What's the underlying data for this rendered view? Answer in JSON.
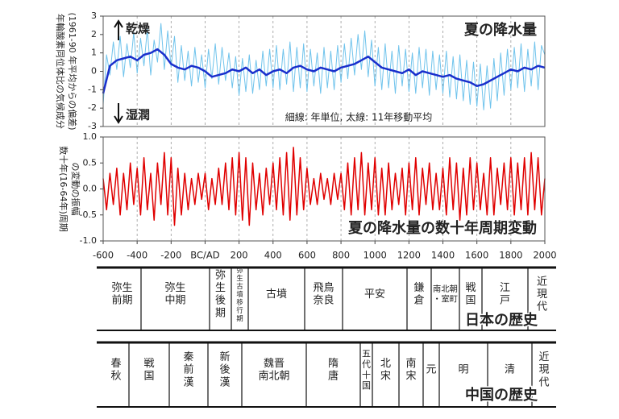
{
  "chart_data": [
    {
      "type": "line",
      "title": "夏の降水量",
      "ylabel": [
        "年輪酸素同位体比の気候成分",
        "(1961-90 年平均からの偏差)"
      ],
      "annotations": {
        "up": "乾燥",
        "down": "湿潤",
        "note": "細線: 年単位, 太線: 11年移動平均"
      },
      "xlim": [
        -600,
        2000
      ],
      "ylim": [
        -3,
        3
      ],
      "yticks": [
        -3,
        -2,
        -1,
        0,
        1,
        2,
        3
      ],
      "grid": true,
      "series": [
        {
          "color": "#6fc3ec",
          "width": 1,
          "x": [
            -600,
            -580,
            -560,
            -540,
            -520,
            -500,
            -480,
            -460,
            -440,
            -420,
            -400,
            -380,
            -360,
            -340,
            -320,
            -300,
            -280,
            -260,
            -240,
            -220,
            -200,
            -180,
            -160,
            -140,
            -120,
            -100,
            -80,
            -60,
            -40,
            -20,
            0,
            20,
            40,
            60,
            80,
            100,
            120,
            140,
            160,
            180,
            200,
            220,
            240,
            260,
            280,
            300,
            320,
            340,
            360,
            380,
            400,
            420,
            440,
            460,
            480,
            500,
            520,
            540,
            560,
            580,
            600,
            620,
            640,
            660,
            680,
            700,
            720,
            740,
            760,
            780,
            800,
            820,
            840,
            860,
            880,
            900,
            920,
            940,
            960,
            980,
            1000,
            1020,
            1040,
            1060,
            1080,
            1100,
            1120,
            1140,
            1160,
            1180,
            1200,
            1220,
            1240,
            1260,
            1280,
            1300,
            1320,
            1340,
            1360,
            1380,
            1400,
            1420,
            1440,
            1460,
            1480,
            1500,
            1520,
            1540,
            1560,
            1580,
            1600,
            1620,
            1640,
            1660,
            1680,
            1700,
            1720,
            1740,
            1760,
            1780,
            1800,
            1820,
            1840,
            1860,
            1880,
            1900,
            1920,
            1940,
            1960,
            1980,
            2000
          ],
          "values": [
            -1.8,
            0.9,
            -0.2,
            1.6,
            0.1,
            1.9,
            -0.3,
            1.5,
            0.2,
            2.1,
            -0.1,
            1.8,
            0.3,
            2.3,
            -0.2,
            1.7,
            0.5,
            2.6,
            0.1,
            2.2,
            0.2,
            1.9,
            -0.6,
            1.4,
            -0.5,
            1.1,
            -0.8,
            1.3,
            -0.6,
            0.9,
            -0.9,
            1.2,
            -0.4,
            1.5,
            -0.7,
            1.3,
            -0.5,
            1.0,
            -0.9,
            0.8,
            -1.3,
            0.7,
            -1.1,
            0.9,
            -1.2,
            0.6,
            -1.0,
            1.1,
            -0.8,
            1.2,
            -0.9,
            1.4,
            -1.0,
            1.2,
            -0.7,
            1.6,
            -1.1,
            1.3,
            -0.9,
            1.5,
            -1.1,
            1.2,
            -0.8,
            1.0,
            -1.2,
            1.3,
            -0.9,
            1.1,
            -1.0,
            1.4,
            -0.6,
            1.5,
            -0.4,
            1.8,
            -0.2,
            2.0,
            0.1,
            2.2,
            -0.3,
            1.7,
            -0.8,
            1.3,
            -1.0,
            1.5,
            -0.9,
            1.1,
            -1.2,
            1.4,
            -0.8,
            1.2,
            -1.1,
            1.0,
            -1.2,
            1.3,
            -0.9,
            1.2,
            -1.3,
            1.1,
            -1.0,
            0.9,
            -1.2,
            1.1,
            -1.4,
            0.8,
            -1.5,
            0.9,
            -1.6,
            0.6,
            -1.8,
            0.5,
            -1.9,
            0.4,
            -2.1,
            0.3,
            -2.0,
            0.7,
            -1.6,
            1.0,
            -1.3,
            1.2,
            -1.0,
            1.3,
            -0.9,
            1.5,
            -1.1,
            1.2,
            -0.8,
            1.6,
            -1.0,
            1.4,
            0.9
          ]
        },
        {
          "color": "#1a2fcc",
          "width": 2.5,
          "x": [
            -600,
            -560,
            -520,
            -480,
            -440,
            -400,
            -360,
            -320,
            -280,
            -240,
            -200,
            -160,
            -120,
            -80,
            -40,
            0,
            40,
            80,
            120,
            160,
            200,
            240,
            280,
            320,
            360,
            400,
            440,
            480,
            520,
            560,
            600,
            640,
            680,
            720,
            760,
            800,
            840,
            880,
            920,
            960,
            1000,
            1040,
            1080,
            1120,
            1160,
            1200,
            1240,
            1280,
            1320,
            1360,
            1400,
            1440,
            1480,
            1520,
            1560,
            1600,
            1640,
            1680,
            1720,
            1760,
            1800,
            1840,
            1880,
            1920,
            1960,
            2000
          ],
          "values": [
            -1.2,
            0.3,
            0.6,
            0.7,
            0.8,
            0.6,
            0.9,
            1.0,
            1.2,
            0.9,
            0.4,
            0.2,
            0.1,
            0.3,
            0.2,
            0.0,
            -0.3,
            -0.2,
            -0.1,
            0.1,
            0.0,
            0.2,
            -0.1,
            0.1,
            -0.2,
            0.0,
            0.1,
            -0.1,
            0.2,
            0.3,
            0.1,
            0.0,
            0.2,
            0.1,
            0.0,
            0.2,
            0.3,
            0.4,
            0.6,
            0.8,
            0.5,
            0.2,
            0.1,
            0.0,
            -0.1,
            0.1,
            -0.2,
            0.0,
            -0.1,
            -0.2,
            -0.3,
            -0.2,
            -0.4,
            -0.5,
            -0.6,
            -0.8,
            -0.7,
            -0.5,
            -0.3,
            -0.1,
            0.1,
            0.0,
            0.2,
            0.1,
            0.3,
            0.2
          ]
        }
      ]
    },
    {
      "type": "line",
      "title": "夏の降水量の数十年周期変動",
      "ylabel": [
        "数十年(16-64年)周期",
        "の変動の振幅"
      ],
      "xlim": [
        -600,
        2000
      ],
      "xticks": [
        -600,
        -400,
        -200,
        {
          "value": 0,
          "label": "BC/AD"
        },
        200,
        400,
        600,
        800,
        1000,
        1200,
        1400,
        1600,
        1800,
        2000
      ],
      "ylim": [
        -1,
        1
      ],
      "yticks": [
        {
          "value": -1,
          "label": "-1.0"
        },
        -0.5,
        {
          "value": 0,
          "label": "0.0"
        },
        0.5,
        {
          "value": 1,
          "label": "1.0"
        }
      ],
      "grid": true,
      "series": [
        {
          "color": "#e00000",
          "width": 1.5,
          "x": [
            -600,
            -580,
            -560,
            -540,
            -520,
            -500,
            -480,
            -460,
            -440,
            -420,
            -400,
            -380,
            -360,
            -340,
            -320,
            -300,
            -280,
            -260,
            -240,
            -220,
            -200,
            -180,
            -160,
            -140,
            -120,
            -100,
            -80,
            -60,
            -40,
            -20,
            0,
            20,
            40,
            60,
            80,
            100,
            120,
            140,
            160,
            180,
            200,
            220,
            240,
            260,
            280,
            300,
            320,
            340,
            360,
            380,
            400,
            420,
            440,
            460,
            480,
            500,
            520,
            540,
            560,
            580,
            600,
            620,
            640,
            660,
            680,
            700,
            720,
            740,
            760,
            780,
            800,
            820,
            840,
            860,
            880,
            900,
            920,
            940,
            960,
            980,
            1000,
            1020,
            1040,
            1060,
            1080,
            1100,
            1120,
            1140,
            1160,
            1180,
            1200,
            1220,
            1240,
            1260,
            1280,
            1300,
            1320,
            1340,
            1360,
            1380,
            1400,
            1420,
            1440,
            1460,
            1480,
            1500,
            1520,
            1540,
            1560,
            1580,
            1600,
            1620,
            1640,
            1660,
            1680,
            1700,
            1720,
            1740,
            1760,
            1780,
            1800,
            1820,
            1840,
            1860,
            1880,
            1900,
            1920,
            1940,
            1960,
            1980,
            2000
          ],
          "values": [
            0.2,
            -0.4,
            0.3,
            -0.3,
            0.4,
            -0.5,
            0.3,
            -0.4,
            0.5,
            -0.3,
            0.4,
            -0.5,
            0.6,
            -0.4,
            0.3,
            -0.6,
            0.5,
            -0.3,
            0.7,
            -0.5,
            0.6,
            -0.7,
            0.4,
            -0.5,
            0.3,
            -0.4,
            0.2,
            -0.3,
            0.3,
            -0.2,
            0.3,
            -0.4,
            0.2,
            -0.3,
            0.4,
            -0.3,
            0.5,
            -0.4,
            0.6,
            -0.5,
            0.7,
            -0.6,
            0.6,
            -0.7,
            0.5,
            -0.4,
            0.3,
            -0.5,
            0.4,
            -0.3,
            0.5,
            -0.4,
            0.6,
            -0.5,
            0.7,
            -0.6,
            0.8,
            -0.5,
            0.6,
            -0.4,
            0.4,
            -0.3,
            0.2,
            -0.3,
            0.3,
            -0.2,
            0.2,
            -0.3,
            0.3,
            -0.2,
            0.3,
            -0.4,
            0.5,
            -0.5,
            0.6,
            -0.4,
            0.7,
            -0.5,
            0.5,
            -0.4,
            0.6,
            -0.5,
            0.4,
            -0.5,
            0.5,
            -0.4,
            0.3,
            -0.3,
            0.4,
            -0.5,
            0.5,
            -0.4,
            0.6,
            -0.5,
            0.4,
            -0.3,
            0.5,
            -0.4,
            0.3,
            -0.4,
            0.4,
            -0.5,
            0.6,
            -0.4,
            0.5,
            -0.6,
            0.4,
            -0.5,
            0.6,
            -0.4,
            0.5,
            -0.4,
            0.3,
            -0.5,
            0.6,
            -0.5,
            0.4,
            -0.3,
            0.5,
            -0.4,
            0.6,
            -0.5,
            0.5,
            -0.4,
            0.6,
            -0.5,
            0.7,
            -0.4,
            0.6,
            -0.5,
            0.2
          ]
        }
      ]
    }
  ],
  "japan_history": {
    "title": "日本の歴史",
    "periods": [
      {
        "lines": [
          "弥生",
          "前期"
        ]
      },
      {
        "lines": [
          "弥生",
          "中期"
        ]
      },
      {
        "lines": [
          "弥",
          "生",
          "後",
          "期"
        ]
      },
      {
        "lines": [
          "弥",
          "生",
          "古",
          "墳",
          "移",
          "行",
          "期"
        ]
      },
      {
        "lines": [
          "古墳"
        ]
      },
      {
        "lines": [
          "飛鳥",
          "奈良"
        ]
      },
      {
        "lines": [
          "平安"
        ]
      },
      {
        "lines": [
          "鎌",
          "倉"
        ]
      },
      {
        "lines": [
          "南北朝",
          "・室町"
        ]
      },
      {
        "lines": [
          "戦",
          "国"
        ]
      },
      {
        "lines": [
          "江",
          "戸"
        ]
      },
      {
        "lines": [
          "近",
          "現",
          "代"
        ]
      }
    ]
  },
  "china_history": {
    "title": "中国の歴史",
    "periods": [
      {
        "lines": [
          "春",
          "秋"
        ]
      },
      {
        "lines": [
          "戦",
          "国"
        ]
      },
      {
        "lines": [
          "秦",
          "前",
          "漢"
        ]
      },
      {
        "lines": [
          "新",
          "後",
          "漢"
        ]
      },
      {
        "lines": [
          "魏晋",
          "南北朝"
        ]
      },
      {
        "lines": [
          "隋",
          "唐"
        ]
      },
      {
        "lines": [
          "五",
          "代",
          "十",
          "国"
        ]
      },
      {
        "lines": [
          "北",
          "宋"
        ]
      },
      {
        "lines": [
          "南",
          "宋"
        ]
      },
      {
        "lines": [
          "元"
        ]
      },
      {
        "lines": [
          "明"
        ]
      },
      {
        "lines": [
          "清"
        ]
      },
      {
        "lines": [
          "近",
          "現",
          "代"
        ]
      }
    ]
  }
}
